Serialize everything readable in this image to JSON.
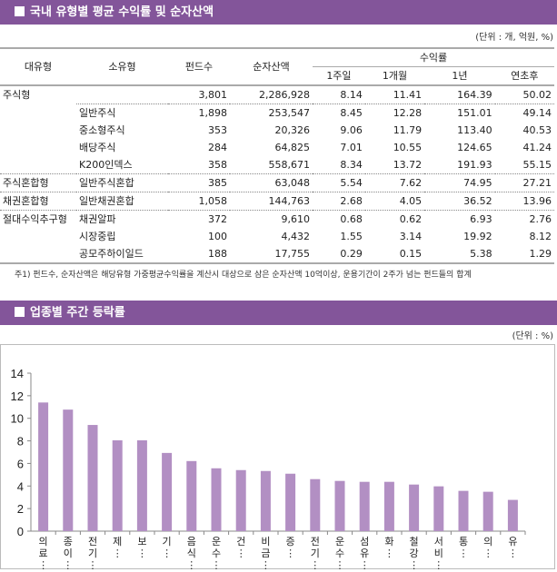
{
  "section1": {
    "title": "국내 유형별 평균 수익률 및 순자산액",
    "unit": "(단위 : 개, 억원, %)"
  },
  "table": {
    "headers": {
      "major": "대유형",
      "minor": "소유형",
      "funds": "펀드수",
      "assets": "순자산액",
      "returns": "수익률",
      "w1": "1주일",
      "m1": "1개월",
      "y1": "1년",
      "ytd": "연초후"
    },
    "rows": [
      [
        "주식형",
        "",
        "3,801",
        "2,286,928",
        "8.14",
        "11.41",
        "164.39",
        "50.02"
      ],
      [
        "",
        "일반주식",
        "1,898",
        "253,547",
        "8.45",
        "12.28",
        "151.01",
        "49.14"
      ],
      [
        "",
        "중소형주식",
        "353",
        "20,326",
        "9.06",
        "11.79",
        "113.40",
        "40.53"
      ],
      [
        "",
        "배당주식",
        "284",
        "64,825",
        "7.01",
        "10.55",
        "124.65",
        "41.24"
      ],
      [
        "",
        "K200인덱스",
        "358",
        "558,671",
        "8.34",
        "13.72",
        "191.93",
        "55.15"
      ],
      [
        "주식혼합형",
        "일반주식혼합",
        "385",
        "63,048",
        "5.54",
        "7.62",
        "74.95",
        "27.21"
      ],
      [
        "채권혼합형",
        "일반채권혼합",
        "1,058",
        "144,763",
        "2.68",
        "4.05",
        "36.52",
        "13.96"
      ],
      [
        "절대수익추구형",
        "채권알파",
        "372",
        "9,610",
        "0.68",
        "0.62",
        "6.93",
        "2.76"
      ],
      [
        "",
        "시장중립",
        "100",
        "4,432",
        "1.55",
        "3.14",
        "19.92",
        "8.12"
      ],
      [
        "",
        "공모주하이일드",
        "188",
        "17,755",
        "0.29",
        "0.15",
        "5.38",
        "1.29"
      ]
    ],
    "note": "주1) 펀드수, 순자산액은 해당유형 가중평균수익률을 계산시 대상으로 삼은 순자산액 10억이상, 운용기간이 2주가 넘는 펀드들의 합계"
  },
  "section2": {
    "title": "업종별 주간 등락률",
    "unit": "(단위 : %)"
  },
  "chart_data": {
    "type": "bar",
    "categories": [
      "의료…",
      "종이…",
      "전기…",
      "제…",
      "보…",
      "기…",
      "음식…",
      "운수…",
      "건…",
      "비금…",
      "증…",
      "전기…",
      "운수…",
      "섬유…",
      "화…",
      "철강…",
      "서비…",
      "통…",
      "의…",
      "유…"
    ],
    "values": [
      11.4,
      10.77,
      9.41,
      8.05,
      8.05,
      6.93,
      6.21,
      5.57,
      5.41,
      5.33,
      5.09,
      4.61,
      4.45,
      4.37,
      4.37,
      4.13,
      3.97,
      3.57,
      3.49,
      2.77
    ],
    "ylim": [
      0,
      14
    ],
    "yticks": [
      "0",
      "2",
      "4",
      "6",
      "8",
      "10",
      "12",
      "14"
    ],
    "grid": false,
    "bar_color": "#b28fc3"
  }
}
